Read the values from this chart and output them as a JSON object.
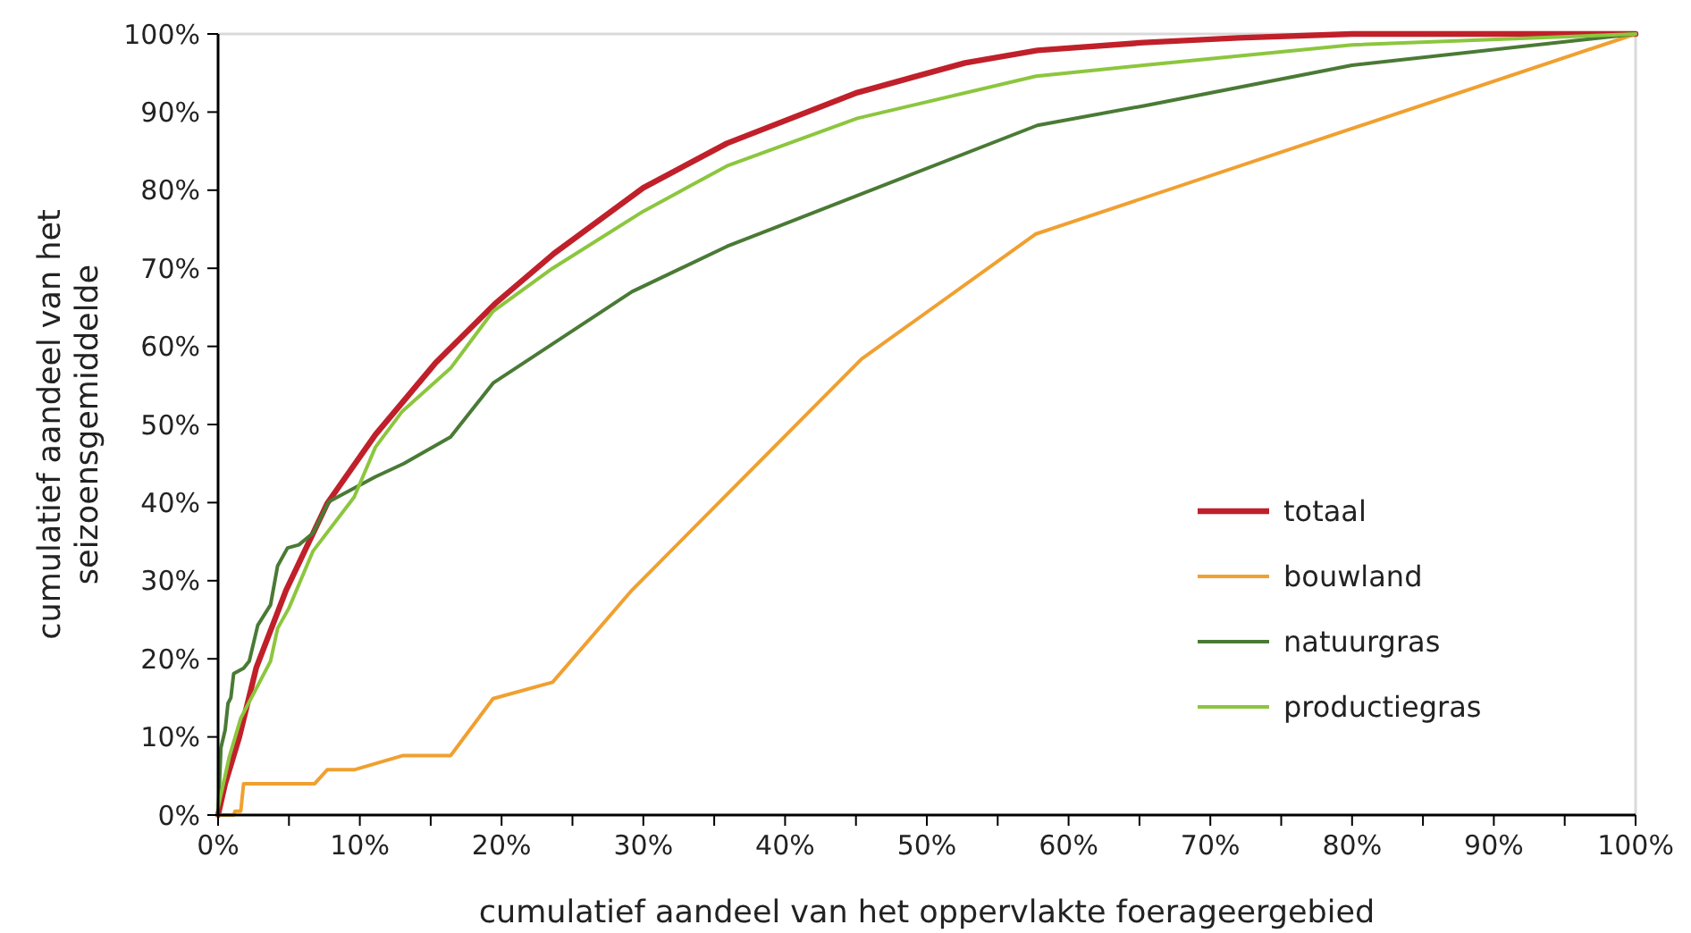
{
  "chart_data": {
    "type": "line",
    "xlabel": "cumulatief aandeel van het oppervlakte foerageergebied",
    "ylabel": "cumulatief aandeel van het seizoensgemiddelde",
    "xlim": [
      0,
      100
    ],
    "ylim": [
      0,
      100
    ],
    "xticks": [
      {
        "value": 0,
        "label": "0%"
      },
      {
        "value": 5,
        "label": null
      },
      {
        "value": 10,
        "label": "10%"
      },
      {
        "value": 15,
        "label": null
      },
      {
        "value": 20,
        "label": "20%"
      },
      {
        "value": 25,
        "label": null
      },
      {
        "value": 30,
        "label": "30%"
      },
      {
        "value": 35,
        "label": null
      },
      {
        "value": 40,
        "label": "40%"
      },
      {
        "value": 45,
        "label": null
      },
      {
        "value": 50,
        "label": "50%"
      },
      {
        "value": 55,
        "label": null
      },
      {
        "value": 60,
        "label": "60%"
      },
      {
        "value": 65,
        "label": null
      },
      {
        "value": 70,
        "label": "70%"
      },
      {
        "value": 75,
        "label": null
      },
      {
        "value": 80,
        "label": "80%"
      },
      {
        "value": 85,
        "label": null
      },
      {
        "value": 90,
        "label": "90%"
      },
      {
        "value": 95,
        "label": null
      },
      {
        "value": 100,
        "label": "100%"
      }
    ],
    "yticks": [
      {
        "value": 0,
        "label": "0%"
      },
      {
        "value": 10,
        "label": "10%"
      },
      {
        "value": 20,
        "label": "20%"
      },
      {
        "value": 30,
        "label": "30%"
      },
      {
        "value": 40,
        "label": "40%"
      },
      {
        "value": 50,
        "label": "50%"
      },
      {
        "value": 60,
        "label": "60%"
      },
      {
        "value": 70,
        "label": "70%"
      },
      {
        "value": 80,
        "label": "80%"
      },
      {
        "value": 90,
        "label": "90%"
      },
      {
        "value": 100,
        "label": "100%"
      }
    ],
    "grid": false,
    "legend": "bottom right",
    "marker": "none",
    "line_style": "solid",
    "series": [
      {
        "name": "totaal",
        "color": "#c0202a",
        "x": [
          0,
          0.5,
          1.5,
          2.7,
          4.8,
          7.7,
          11.1,
          15.3,
          19.5,
          23.7,
          30,
          35.9,
          45.1,
          52.7,
          57.8,
          65.3,
          72,
          80,
          100
        ],
        "values": [
          0,
          4,
          10,
          18.9,
          28.8,
          39.9,
          48.7,
          57.8,
          65.4,
          71.9,
          80.3,
          86,
          92.5,
          96.3,
          97.9,
          98.9,
          99.5,
          100,
          100
        ]
      },
      {
        "name": "bouwland",
        "color": "#f0a030",
        "x": [
          0,
          1.1,
          1.2,
          1.6,
          1.8,
          6.8,
          7.7,
          9.6,
          13,
          16.4,
          19.4,
          23.6,
          29.2,
          45.4,
          57.7,
          100
        ],
        "values": [
          0,
          0,
          0.5,
          0.5,
          4,
          4,
          5.8,
          5.8,
          7.6,
          7.6,
          14.9,
          17,
          28.8,
          58.4,
          74.4,
          100
        ]
      },
      {
        "name": "natuurgras",
        "color": "#4a7a35",
        "x": [
          0,
          0.2,
          0.5,
          0.7,
          0.9,
          1.1,
          1.8,
          2.2,
          2.8,
          3.7,
          4.2,
          4.9,
          5.7,
          6.7,
          7.8,
          11.1,
          13.1,
          16.4,
          19.4,
          29.2,
          35.9,
          57.8,
          65.3,
          80,
          100
        ],
        "values": [
          0,
          8.6,
          10.9,
          14.3,
          15,
          18.1,
          18.8,
          19.7,
          24.3,
          26.9,
          31.9,
          34.2,
          34.6,
          36.1,
          40.1,
          43.3,
          45,
          48.4,
          55.3,
          67,
          72.8,
          88.3,
          90.8,
          96,
          100
        ]
      },
      {
        "name": "productiegras",
        "color": "#8cc63e",
        "x": [
          0,
          0.8,
          1.6,
          3.7,
          4.2,
          5,
          6.7,
          9.6,
          11.1,
          13,
          16.4,
          19.4,
          23.6,
          30,
          35.9,
          45.1,
          57.7,
          65.3,
          80,
          100
        ],
        "values": [
          1,
          7.5,
          12.4,
          19.7,
          23.9,
          26.5,
          33.8,
          40.7,
          47.1,
          51.7,
          57.2,
          64.5,
          70,
          77.3,
          83.1,
          89.2,
          94.6,
          96,
          98.6,
          100
        ]
      }
    ]
  }
}
